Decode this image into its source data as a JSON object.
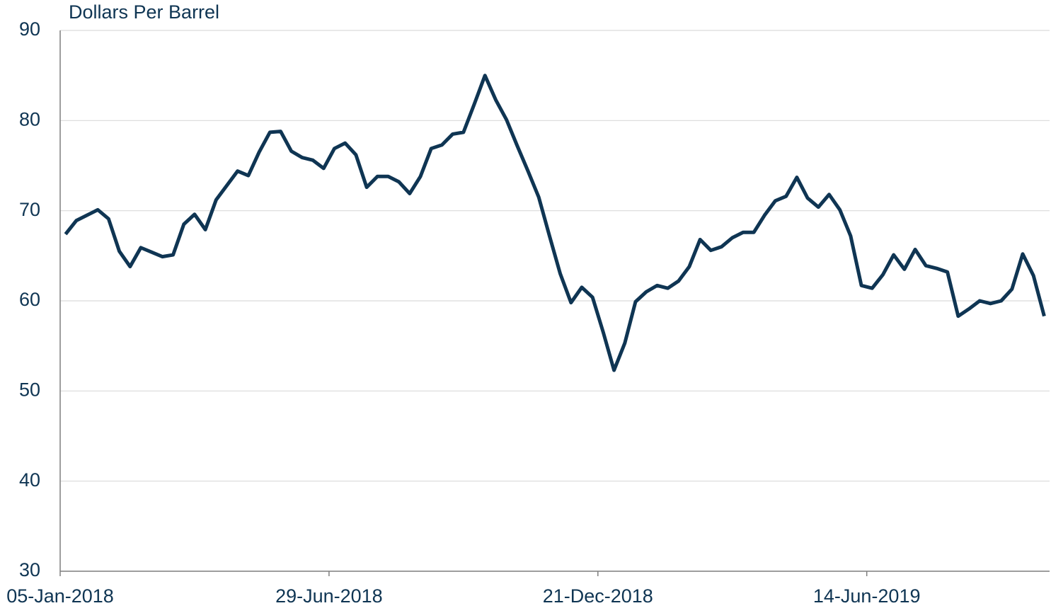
{
  "chart_data": {
    "type": "line",
    "ylabel": "Dollars Per Barrel",
    "categories": [
      "05-Jan-2018",
      null,
      null,
      null,
      null,
      null,
      null,
      null,
      null,
      null,
      null,
      null,
      null,
      null,
      null,
      null,
      null,
      null,
      null,
      null,
      null,
      null,
      null,
      null,
      null,
      "29-Jun-2018",
      null,
      null,
      null,
      null,
      null,
      null,
      null,
      null,
      null,
      null,
      null,
      null,
      null,
      null,
      null,
      null,
      null,
      null,
      null,
      null,
      null,
      null,
      null,
      null,
      "21-Dec-2018",
      null,
      null,
      null,
      null,
      null,
      null,
      null,
      null,
      null,
      null,
      null,
      null,
      null,
      null,
      null,
      null,
      null,
      null,
      null,
      null,
      null,
      null,
      null,
      null,
      "14-Jun-2019",
      null,
      null,
      null,
      null,
      null,
      null,
      null,
      null,
      null,
      null,
      null,
      null,
      null,
      null,
      null,
      null
    ],
    "values": [
      67.4,
      68.9,
      69.5,
      70.1,
      69.1,
      65.5,
      63.8,
      65.9,
      65.4,
      64.9,
      65.1,
      68.5,
      69.6,
      67.9,
      71.2,
      72.8,
      74.4,
      73.9,
      76.5,
      78.7,
      78.8,
      76.6,
      75.9,
      75.6,
      74.7,
      76.9,
      77.5,
      76.2,
      72.6,
      73.8,
      73.8,
      73.2,
      71.9,
      73.8,
      76.9,
      77.3,
      78.5,
      78.7,
      81.8,
      85.0,
      82.3,
      80.1,
      77.2,
      74.4,
      71.5,
      67.2,
      63.0,
      59.8,
      61.5,
      60.4,
      56.5,
      52.3,
      55.3,
      59.9,
      61.0,
      61.7,
      61.4,
      62.2,
      63.8,
      66.8,
      65.6,
      66.0,
      67.0,
      67.6,
      67.6,
      69.5,
      71.1,
      71.6,
      73.7,
      71.4,
      70.4,
      71.8,
      70.1,
      67.2,
      61.7,
      61.4,
      62.9,
      65.1,
      63.5,
      65.7,
      63.9,
      63.6,
      63.2,
      58.3,
      59.1,
      60.0,
      59.7,
      60.0,
      61.3,
      65.2,
      62.8,
      58.3
    ],
    "color": "#0f3553",
    "ylim": [
      30,
      90
    ],
    "yticks": [
      30,
      40,
      50,
      60,
      70,
      80,
      90
    ],
    "grid": true
  }
}
